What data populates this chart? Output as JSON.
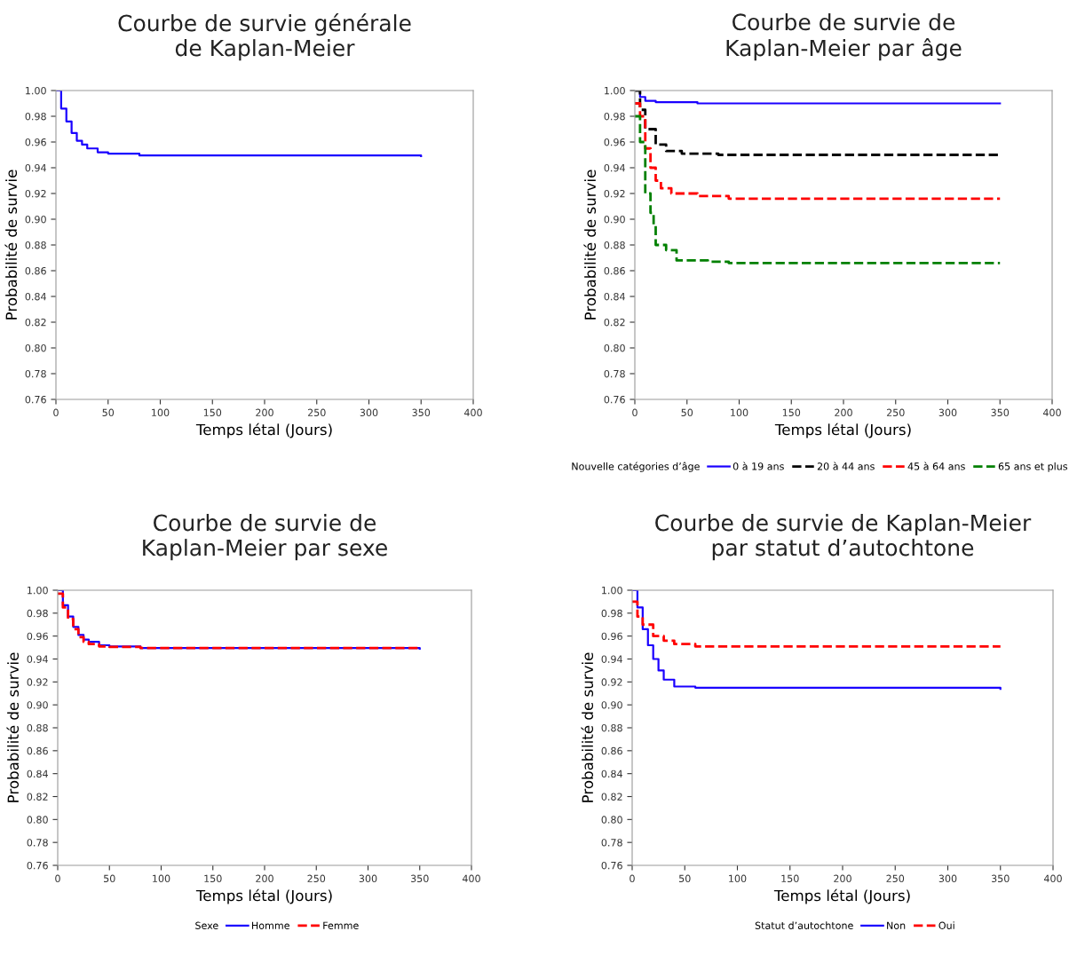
{
  "chart_data": [
    {
      "type": "step",
      "title": "Courbe de survie générale\nde Kaplan-Meier",
      "xlabel": "Temps létal (Jours)",
      "ylabel": "Probabilité de survie",
      "grid": false,
      "legend": false,
      "xlim": [
        0,
        400
      ],
      "xticks": [
        0,
        50,
        100,
        150,
        200,
        250,
        300,
        350,
        400
      ],
      "ylim": [
        0.76,
        1.0
      ],
      "yticks": [
        0.76,
        0.78,
        {
          "value": 0.8,
          "label": "0.80"
        },
        0.82,
        0.84,
        0.86,
        0.88,
        {
          "value": 0.9,
          "label": "0.90"
        },
        0.92,
        0.94,
        0.96,
        0.98,
        {
          "value": 1.0,
          "label": "1.00"
        }
      ],
      "series": [
        {
          "color": "#1a00ff",
          "line_style": "solid",
          "x": [
            0,
            5,
            10,
            15,
            20,
            25,
            30,
            40,
            50,
            80,
            350
          ],
          "values": [
            1.0,
            0.986,
            0.976,
            0.967,
            0.961,
            0.958,
            0.955,
            0.952,
            0.951,
            0.9495,
            0.949
          ]
        }
      ]
    },
    {
      "type": "step",
      "title": "Courbe de survie de\nKaplan-Meier par âge",
      "xlabel": "Temps létal (Jours)",
      "ylabel": "Probabilité de survie",
      "grid": false,
      "legend": "bottom",
      "legend_title": "Nouvelle catégories d’âge",
      "xlim": [
        0,
        400
      ],
      "xticks": [
        0,
        50,
        100,
        150,
        200,
        250,
        300,
        350,
        400
      ],
      "ylim": [
        0.76,
        1.0
      ],
      "yticks": [
        0.76,
        0.78,
        {
          "value": 0.8,
          "label": "0.80"
        },
        0.82,
        0.84,
        0.86,
        0.88,
        {
          "value": 0.9,
          "label": "0.90"
        },
        0.92,
        0.94,
        0.96,
        0.98,
        {
          "value": 1.0,
          "label": "1.00"
        }
      ],
      "series": [
        {
          "name": "0 à 19 ans",
          "color": "#1a00ff",
          "line_style": "solid",
          "x": [
            0,
            5,
            10,
            20,
            60,
            350
          ],
          "values": [
            1.0,
            0.995,
            0.992,
            0.991,
            0.99,
            0.99
          ]
        },
        {
          "name": "20 à 44 ans",
          "color": "#000000",
          "line_style": "dashed",
          "x": [
            0,
            5,
            10,
            20,
            30,
            45,
            80,
            350
          ],
          "values": [
            1.0,
            0.985,
            0.97,
            0.958,
            0.953,
            0.951,
            0.95,
            0.95
          ]
        },
        {
          "name": "45 à 64 ans",
          "color": "#ff0000",
          "line_style": "dashed",
          "x": [
            0,
            5,
            10,
            15,
            20,
            25,
            35,
            60,
            90,
            350
          ],
          "values": [
            0.99,
            0.98,
            0.955,
            0.94,
            0.93,
            0.924,
            0.92,
            0.918,
            0.916,
            0.916
          ]
        },
        {
          "name": "65 ans et plus",
          "color": "#008000",
          "line_style": "dashed",
          "x": [
            0,
            5,
            10,
            15,
            18,
            20,
            30,
            40,
            70,
            90,
            350
          ],
          "values": [
            0.98,
            0.96,
            0.92,
            0.905,
            0.895,
            0.88,
            0.876,
            0.868,
            0.867,
            0.866,
            0.866
          ]
        }
      ]
    },
    {
      "type": "step",
      "title": "Courbe de survie de\nKaplan-Meier par sexe",
      "xlabel": "Temps létal (Jours)",
      "ylabel": "Probabilité de survie",
      "grid": false,
      "legend": "bottom",
      "legend_title": "Sexe",
      "xlim": [
        0,
        400
      ],
      "xticks": [
        0,
        50,
        100,
        150,
        200,
        250,
        300,
        350,
        400
      ],
      "ylim": [
        0.76,
        1.0
      ],
      "yticks": [
        0.76,
        0.78,
        {
          "value": 0.8,
          "label": "0.80"
        },
        0.82,
        0.84,
        0.86,
        0.88,
        {
          "value": 0.9,
          "label": "0.90"
        },
        0.92,
        0.94,
        0.96,
        0.98,
        {
          "value": 1.0,
          "label": "1.00"
        }
      ],
      "series": [
        {
          "name": "Homme",
          "color": "#1a00ff",
          "line_style": "solid",
          "x": [
            0,
            5,
            10,
            15,
            20,
            25,
            30,
            40,
            50,
            80,
            350
          ],
          "values": [
            1.0,
            0.987,
            0.977,
            0.968,
            0.961,
            0.957,
            0.955,
            0.952,
            0.951,
            0.9495,
            0.949
          ]
        },
        {
          "name": "Femme",
          "color": "#ff0000",
          "line_style": "dashed",
          "x": [
            0,
            5,
            10,
            15,
            20,
            25,
            30,
            40,
            50,
            80,
            350
          ],
          "values": [
            0.997,
            0.985,
            0.975,
            0.966,
            0.959,
            0.955,
            0.953,
            0.951,
            0.9505,
            0.9495,
            0.949
          ]
        }
      ]
    },
    {
      "type": "step",
      "title": "Courbe de survie de Kaplan-Meier\npar statut d’autochtone",
      "xlabel": "Temps létal (Jours)",
      "ylabel": "Probabilité de survie",
      "grid": false,
      "legend": "bottom",
      "legend_title": "Statut d’autochtone",
      "xlim": [
        0,
        400
      ],
      "xticks": [
        0,
        50,
        100,
        150,
        200,
        250,
        300,
        350,
        400
      ],
      "ylim": [
        0.76,
        1.0
      ],
      "yticks": [
        0.76,
        0.78,
        {
          "value": 0.8,
          "label": "0.80"
        },
        0.82,
        0.84,
        0.86,
        0.88,
        {
          "value": 0.9,
          "label": "0.90"
        },
        0.92,
        0.94,
        0.96,
        0.98,
        {
          "value": 1.0,
          "label": "1.00"
        }
      ],
      "series": [
        {
          "name": "Non",
          "color": "#1a00ff",
          "line_style": "solid",
          "x": [
            0,
            5,
            10,
            15,
            20,
            25,
            30,
            40,
            60,
            350
          ],
          "values": [
            1.0,
            0.985,
            0.966,
            0.952,
            0.94,
            0.93,
            0.922,
            0.916,
            0.915,
            0.914
          ]
        },
        {
          "name": "Oui",
          "color": "#ff0000",
          "line_style": "dashed",
          "x": [
            0,
            5,
            10,
            20,
            30,
            40,
            60,
            350
          ],
          "values": [
            0.99,
            0.977,
            0.97,
            0.96,
            0.956,
            0.953,
            0.951,
            0.951
          ]
        }
      ]
    }
  ]
}
